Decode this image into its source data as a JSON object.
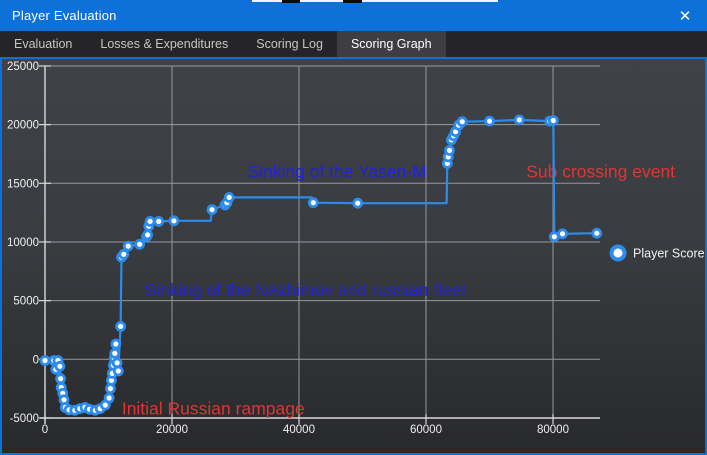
{
  "window": {
    "title": "Player Evaluation",
    "close_glyph": "✕"
  },
  "tabs": [
    {
      "label": "Evaluation",
      "active": false
    },
    {
      "label": "Losses & Expenditures",
      "active": false
    },
    {
      "label": "Scoring Log",
      "active": false
    },
    {
      "label": "Scoring Graph",
      "active": true
    }
  ],
  "legend": {
    "label": "Player Score"
  },
  "colors": {
    "accent": "#0d71d9",
    "series": "#2d8ceb",
    "marker_fill": "#ffffff",
    "grid": "#97999c",
    "axis": "#d9d9d9",
    "tick_label": "#efefef",
    "legend_label": "#f2f2f2",
    "annotation_blue": "#2121dc",
    "annotation_red": "#e23434"
  },
  "chart_data": {
    "type": "line",
    "title": "",
    "xlabel": "",
    "ylabel": "",
    "xlim": [
      0,
      87500
    ],
    "ylim": [
      -5000,
      25000
    ],
    "x_ticks": [
      0,
      20000,
      40000,
      60000,
      80000
    ],
    "y_ticks": [
      -5000,
      0,
      5000,
      10000,
      15000,
      20000,
      25000
    ],
    "grid": true,
    "legend_position": "right",
    "series": [
      {
        "name": "Player Score",
        "color": "#2d8ceb",
        "points": [
          [
            0,
            -100,
            1
          ],
          [
            1400,
            -100,
            1
          ],
          [
            1700,
            -850,
            1
          ],
          [
            2050,
            -100,
            1
          ],
          [
            2350,
            -600,
            1
          ],
          [
            2450,
            -1650,
            1
          ],
          [
            2550,
            -2400,
            1
          ],
          [
            2800,
            -2900,
            1
          ],
          [
            3000,
            -3450,
            1
          ],
          [
            3200,
            -4100,
            1
          ],
          [
            3800,
            -4300,
            1
          ],
          [
            4700,
            -4350,
            1
          ],
          [
            5500,
            -4200,
            1
          ],
          [
            6300,
            -4100,
            1
          ],
          [
            7000,
            -4250,
            1
          ],
          [
            7900,
            -4350,
            1
          ],
          [
            8700,
            -4200,
            1
          ],
          [
            9500,
            -3900,
            1
          ],
          [
            10100,
            -3300,
            1
          ],
          [
            10300,
            -2500,
            1
          ],
          [
            10450,
            -1800,
            1
          ],
          [
            10600,
            -1200,
            1
          ],
          [
            10750,
            -500,
            1
          ],
          [
            10900,
            100,
            1
          ],
          [
            11000,
            500,
            1
          ],
          [
            11150,
            1300,
            1
          ],
          [
            11350,
            -300,
            1
          ],
          [
            11550,
            -1000,
            1
          ],
          [
            11900,
            2800,
            1
          ],
          [
            12050,
            8700,
            1
          ],
          [
            12400,
            8950,
            1
          ],
          [
            13100,
            9650,
            1
          ],
          [
            14900,
            9800,
            1
          ],
          [
            16000,
            10450,
            1
          ],
          [
            16150,
            10600,
            1
          ],
          [
            16350,
            11350,
            1
          ],
          [
            16550,
            11750,
            1
          ],
          [
            17900,
            11750,
            1
          ],
          [
            20300,
            11800,
            1
          ],
          [
            26100,
            11800,
            0
          ],
          [
            26300,
            12750,
            1
          ],
          [
            28350,
            13150,
            1
          ],
          [
            28650,
            13350,
            1
          ],
          [
            29000,
            13800,
            1
          ],
          [
            42000,
            13800,
            0
          ],
          [
            42250,
            13350,
            1
          ],
          [
            49250,
            13300,
            1
          ],
          [
            63250,
            13300,
            0
          ],
          [
            63350,
            16700,
            1
          ],
          [
            63500,
            17250,
            1
          ],
          [
            63700,
            17800,
            1
          ],
          [
            64000,
            18700,
            1
          ],
          [
            64350,
            19050,
            1
          ],
          [
            64650,
            19400,
            1
          ],
          [
            65150,
            19950,
            1
          ],
          [
            65700,
            20250,
            1
          ],
          [
            70000,
            20300,
            1
          ],
          [
            74700,
            20400,
            1
          ],
          [
            79500,
            20300,
            1
          ],
          [
            80050,
            20350,
            1
          ],
          [
            80200,
            10450,
            1
          ],
          [
            81500,
            10700,
            1
          ],
          [
            86900,
            10750,
            1
          ]
        ]
      }
    ],
    "annotations": [
      {
        "text": "Sinking of the Yasen-M",
        "color": "#2121dc",
        "x": 46000,
        "y": 16000
      },
      {
        "text": "Sub crossing event",
        "color": "#e23434",
        "x": 87500,
        "y": 16000
      },
      {
        "text": "Sinking of the Nakhimov and russian fleet",
        "color": "#2121dc",
        "x": 41000,
        "y": 5900
      },
      {
        "text": "Initial Russian rampage",
        "color": "#e23434",
        "x": 26500,
        "y": -4200
      }
    ]
  }
}
